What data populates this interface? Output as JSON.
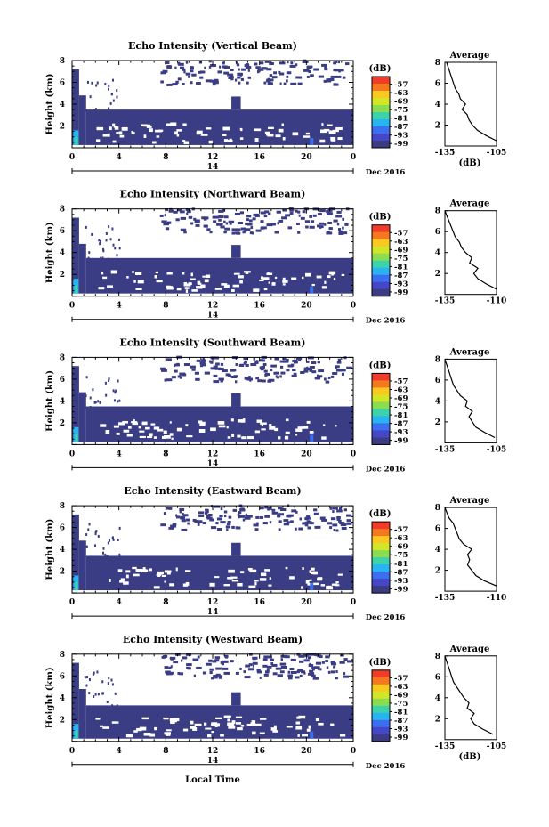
{
  "panels": [
    {
      "title": "Echo Intensity (Vertical Beam)",
      "avg_xticks": [
        "-135",
        "-105"
      ],
      "avg_xrange": [
        -135,
        -105
      ]
    },
    {
      "title": "Echo Intensity (Northward Beam)",
      "avg_xticks": [
        "-135",
        "-110"
      ],
      "avg_xrange": [
        -135,
        -110
      ]
    },
    {
      "title": "Echo Intensity (Southward Beam)",
      "avg_xticks": [
        "-135",
        "-105"
      ],
      "avg_xrange": [
        -135,
        -105
      ]
    },
    {
      "title": "Echo Intensity (Eastward Beam)",
      "avg_xticks": [
        "-135",
        "-110"
      ],
      "avg_xrange": [
        -135,
        -110
      ]
    },
    {
      "title": "Echo Intensity (Westward Beam)",
      "avg_xticks": [
        "-135",
        "-105"
      ],
      "avg_xrange": [
        -135,
        -105
      ]
    }
  ],
  "ylabel": "Height (km)",
  "yticks": [
    "2",
    "4",
    "6",
    "8"
  ],
  "xticks": [
    "0",
    "4",
    "8",
    "12",
    "16",
    "20",
    "0"
  ],
  "day_label": "14",
  "date_label": "Dec 2016",
  "xlabel": "Local Time",
  "colorbar": {
    "unit": "(dB)",
    "labels": [
      "-57",
      "-63",
      "-69",
      "-75",
      "-81",
      "-87",
      "-93",
      "-99"
    ],
    "colors": [
      "#f03c28",
      "#f5781e",
      "#fac81e",
      "#d2e628",
      "#8cdc50",
      "#3cd2aa",
      "#28b4f0",
      "#3c6ef0",
      "#4646c8",
      "#3c3c82"
    ]
  },
  "avg_title": "Average",
  "avg_xlabel": "(dB)",
  "avg_yticks": [
    "2",
    "4",
    "6",
    "8"
  ],
  "chart_data": {
    "type": "heatmap",
    "x_unit": "Local Time (h)",
    "xlim": [
      0,
      24
    ],
    "ylim": [
      0,
      8
    ],
    "layer_top_km": [
      3.5,
      3.5,
      3.5,
      3.4,
      3.3
    ],
    "color_scale_db": [
      -99,
      -57
    ],
    "average_profiles": [
      {
        "height_km": [
          0.5,
          1.0,
          1.5,
          2.0,
          2.5,
          3.0,
          3.5,
          4.0,
          4.5,
          5.0,
          5.5,
          6.0,
          6.5,
          7.0,
          7.5,
          8.0
        ],
        "db": [
          -105,
          -111,
          -116,
          -119,
          -121,
          -122,
          -125,
          -123,
          -126,
          -127,
          -129,
          -130,
          -131,
          -132,
          -133,
          -134
        ]
      },
      {
        "height_km": [
          0.5,
          1.0,
          1.5,
          2.0,
          2.5,
          3.0,
          3.5,
          4.0,
          4.5,
          5.0,
          5.5,
          6.0,
          6.5,
          7.0,
          7.5,
          8.0
        ],
        "db": [
          -110,
          -115,
          -119,
          -121,
          -119,
          -123,
          -122,
          -125,
          -127,
          -128,
          -130,
          -131,
          -132,
          -133,
          -134,
          -135
        ]
      },
      {
        "height_km": [
          0.5,
          1.0,
          1.5,
          2.0,
          2.5,
          3.0,
          3.5,
          4.0,
          4.5,
          5.0,
          5.5,
          6.0,
          6.5,
          7.0,
          7.5,
          8.0
        ],
        "db": [
          -106,
          -112,
          -117,
          -119,
          -121,
          -119,
          -123,
          -122,
          -126,
          -128,
          -130,
          -131,
          -132,
          -133,
          -134,
          -135
        ]
      },
      {
        "height_km": [
          0.5,
          1.0,
          1.5,
          2.0,
          2.5,
          3.0,
          3.5,
          4.0,
          4.5,
          5.0,
          5.5,
          6.0,
          6.5,
          7.0,
          7.5,
          8.0
        ],
        "db": [
          -110,
          -116,
          -120,
          -122,
          -124,
          -123,
          -124,
          -122,
          -126,
          -128,
          -129,
          -130,
          -131,
          -133,
          -134,
          -135
        ]
      },
      {
        "height_km": [
          0.5,
          1.0,
          1.5,
          2.0,
          2.5,
          3.0,
          3.5,
          4.0,
          4.5,
          5.0,
          5.5,
          6.0,
          6.5,
          7.0,
          7.5,
          8.0
        ],
        "db": [
          -107,
          -113,
          -118,
          -120,
          -118,
          -122,
          -121,
          -124,
          -126,
          -128,
          -130,
          -131,
          -132,
          -133,
          -134,
          -135
        ]
      }
    ]
  }
}
